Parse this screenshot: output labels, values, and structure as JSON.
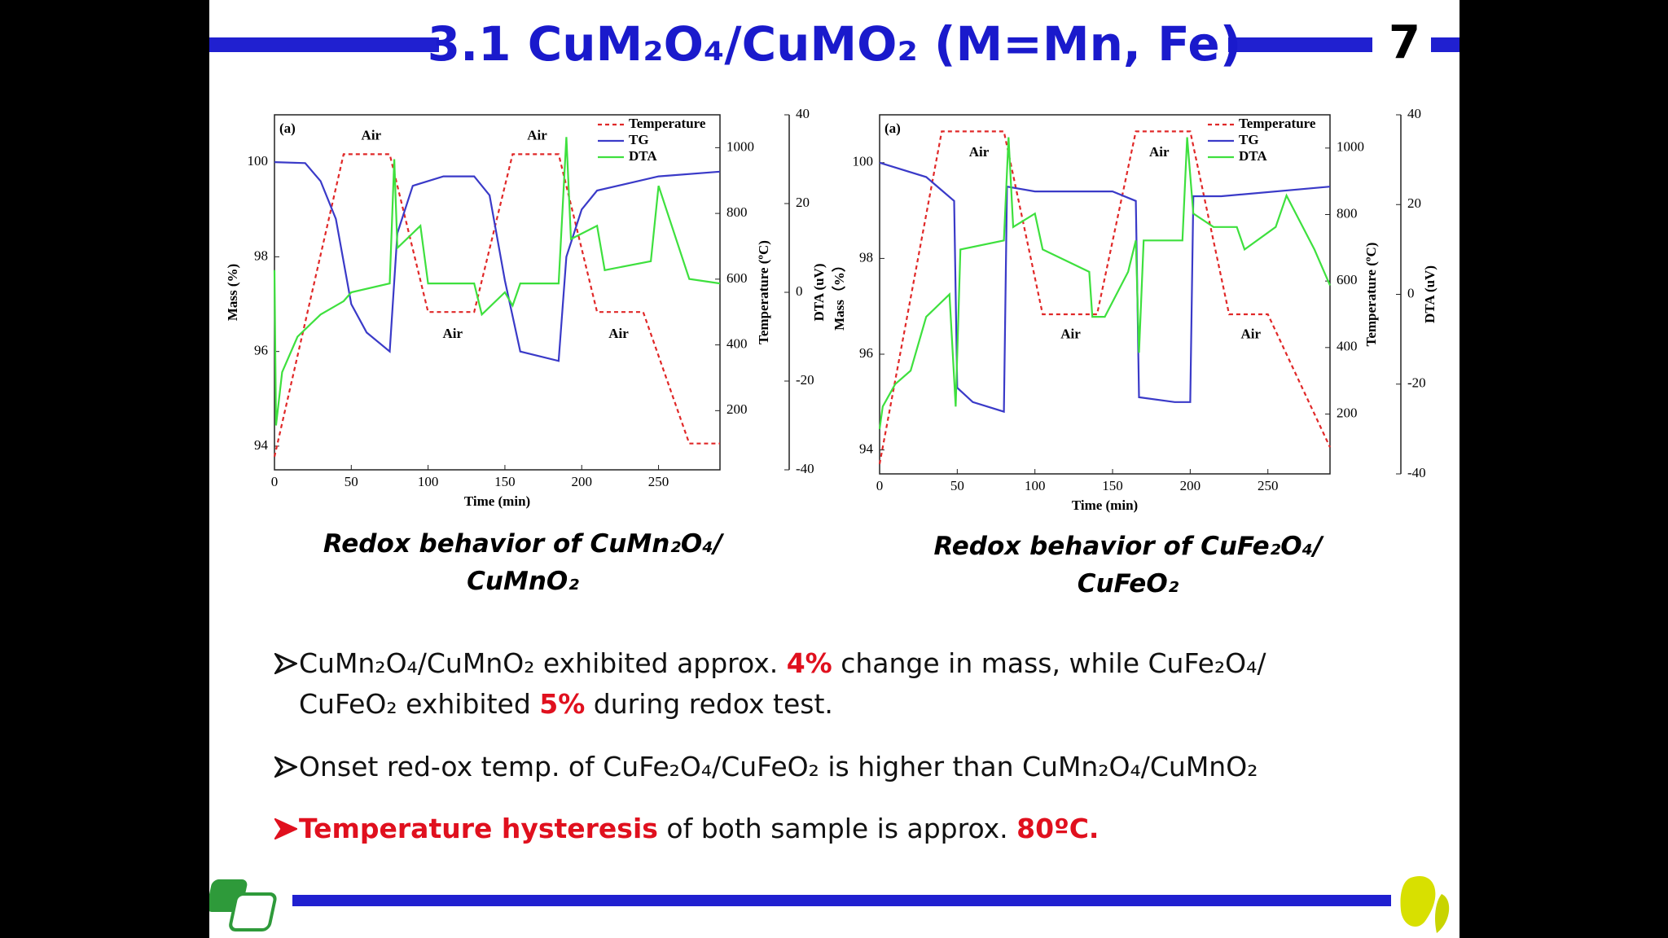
{
  "header": {
    "title": "3.1 CuM₂O₄/CuMO₂ (M=Mn, Fe)",
    "page": "7"
  },
  "chart_data": [
    {
      "type": "line",
      "panel": "(a)",
      "xlabel": "Time (min)",
      "ylabel": "Mass (%)",
      "y2label": "Temperature (ºC)",
      "y3label": "DTA (uV)",
      "xlim": [
        0,
        290
      ],
      "xticks": [
        0,
        50,
        100,
        150,
        200,
        250
      ],
      "ylim": [
        93.5,
        101
      ],
      "yticks": [
        94,
        96,
        98,
        100
      ],
      "y2lim": [
        20,
        1100
      ],
      "y2ticks": [
        200,
        400,
        600,
        800,
        1000
      ],
      "y3lim": [
        -40,
        40
      ],
      "y3ticks": [
        -40,
        -20,
        0,
        20,
        40
      ],
      "annotations": [
        "Air",
        "Air",
        "Air",
        "Air"
      ],
      "series": [
        {
          "name": "Temperature",
          "color": "#e02828",
          "axis": "y2",
          "x": [
            0,
            45,
            75,
            100,
            130,
            155,
            185,
            210,
            240,
            270,
            290
          ],
          "values": [
            60,
            980,
            980,
            500,
            500,
            980,
            980,
            500,
            500,
            100,
            100
          ]
        },
        {
          "name": "TG",
          "color": "#3a3ac8",
          "axis": "y",
          "x": [
            0,
            20,
            30,
            40,
            50,
            60,
            75,
            80,
            90,
            110,
            130,
            140,
            150,
            160,
            185,
            190,
            200,
            210,
            250,
            290
          ],
          "values": [
            100,
            99.98,
            99.6,
            98.8,
            97,
            96.4,
            96,
            98.5,
            99.5,
            99.7,
            99.7,
            99.3,
            97.5,
            96,
            95.8,
            98,
            99,
            99.4,
            99.7,
            99.8
          ]
        },
        {
          "name": "DTA",
          "color": "#3ee03e",
          "axis": "y3",
          "x": [
            0,
            1,
            5,
            15,
            30,
            45,
            50,
            75,
            78,
            80,
            95,
            100,
            130,
            135,
            150,
            155,
            160,
            185,
            190,
            193,
            210,
            215,
            245,
            250,
            270,
            290
          ],
          "values": [
            5,
            -30,
            -18,
            -10,
            -5,
            -2,
            0,
            2,
            30,
            10,
            15,
            2,
            2,
            -5,
            0,
            -3,
            2,
            2,
            35,
            12,
            15,
            5,
            7,
            24,
            3,
            2
          ]
        }
      ],
      "caption": [
        "Redox behavior of CuMn₂O₄/",
        "CuMnO₂"
      ]
    },
    {
      "type": "line",
      "panel": "(a)",
      "xlabel": "Time (min)",
      "ylabel": "Mass（%）",
      "y2label": "Temperature (ºC)",
      "y3label": "DTA (uV)",
      "xlim": [
        0,
        290
      ],
      "xticks": [
        0,
        50,
        100,
        150,
        200,
        250
      ],
      "ylim": [
        93.5,
        101
      ],
      "yticks": [
        94,
        96,
        98,
        100
      ],
      "y2lim": [
        20,
        1100
      ],
      "y2ticks": [
        200,
        400,
        600,
        800,
        1000
      ],
      "y3lim": [
        -40,
        40
      ],
      "y3ticks": [
        -40,
        -20,
        0,
        20,
        40
      ],
      "annotations": [
        "Air",
        "Air",
        "Air",
        "Air"
      ],
      "series": [
        {
          "name": "Temperature",
          "color": "#e02828",
          "axis": "y2",
          "x": [
            0,
            40,
            80,
            105,
            140,
            165,
            200,
            225,
            250,
            290
          ],
          "values": [
            50,
            1050,
            1050,
            500,
            500,
            1050,
            1050,
            500,
            500,
            100
          ]
        },
        {
          "name": "TG",
          "color": "#3a3ac8",
          "axis": "y",
          "x": [
            0,
            30,
            48,
            50,
            60,
            80,
            82,
            100,
            150,
            165,
            167,
            190,
            200,
            202,
            220,
            290
          ],
          "values": [
            100,
            99.7,
            99.2,
            95.3,
            95,
            94.8,
            99.5,
            99.4,
            99.4,
            99.2,
            95.1,
            95,
            95,
            99.3,
            99.3,
            99.5
          ]
        },
        {
          "name": "DTA",
          "color": "#3ee03e",
          "axis": "y3",
          "x": [
            0,
            2,
            10,
            20,
            30,
            45,
            49,
            52,
            80,
            83,
            86,
            100,
            105,
            135,
            137,
            145,
            160,
            165,
            167,
            170,
            195,
            198,
            202,
            215,
            230,
            235,
            255,
            262,
            280,
            290
          ],
          "values": [
            -30,
            -25,
            -20,
            -17,
            -5,
            0,
            -25,
            10,
            12,
            35,
            15,
            18,
            10,
            5,
            -5,
            -5,
            5,
            12,
            -13,
            12,
            12,
            35,
            18,
            15,
            15,
            10,
            15,
            22,
            10,
            2
          ]
        }
      ],
      "caption": [
        "Redox behavior of CuFe₂O₄/",
        "CuFeO₂"
      ]
    }
  ],
  "bullets": [
    [
      "CuMn₂O₄/CuMnO₂ exhibited approx. ",
      "4%",
      " change in mass, while CuFe₂O₄/",
      "CuFeO₂ exhibited ",
      "5%",
      " during redox test."
    ],
    [
      "Onset red-ox temp. of CuFe₂O₄/CuFeO₂ is higher than CuMn₂O₄/CuMnO₂"
    ],
    [
      "Temperature hysteresis",
      " of both sample is approx. ",
      "80ºC."
    ]
  ]
}
